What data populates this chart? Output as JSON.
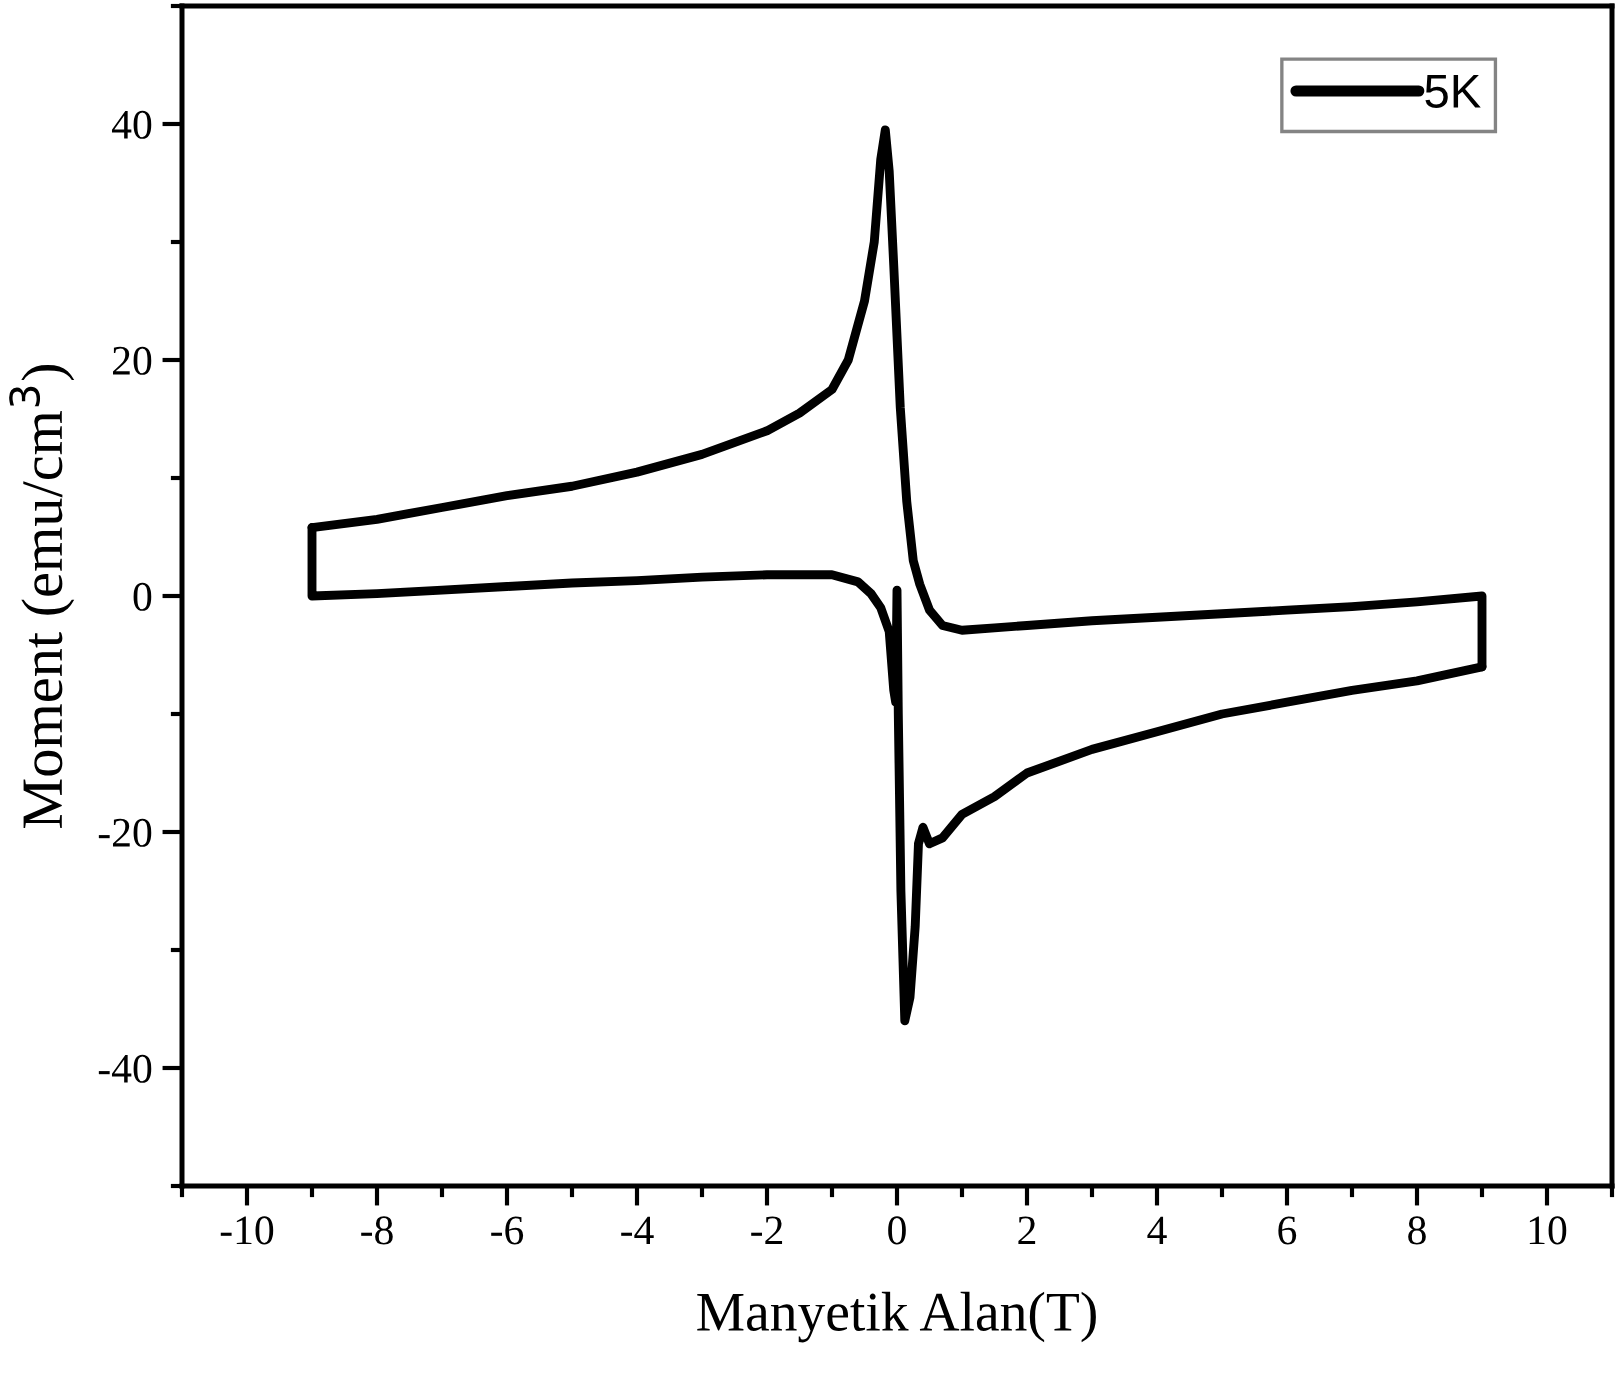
{
  "chart_data": {
    "type": "line",
    "xlabel": "Manyetik Alan(T)",
    "ylabel": "Moment (emu/cm$^{3}$)",
    "xlim": [
      -11,
      11
    ],
    "xticks": [
      -10,
      -8,
      -6,
      -4,
      -2,
      0,
      2,
      4,
      6,
      8,
      10
    ],
    "ylim": [
      -50,
      50
    ],
    "yticks": [
      -40,
      -20,
      0,
      20,
      40
    ],
    "grid": false,
    "legend": "top right",
    "marker": "none",
    "line_style": "solid",
    "series": [
      {
        "name": "5K",
        "color": "#000000",
        "x": [
          9,
          9,
          8,
          7,
          6,
          5,
          4,
          3,
          2,
          1.5,
          1,
          0.7,
          0.5,
          0.35,
          0.25,
          0.15,
          0.05,
          -0.05,
          -0.12,
          -0.18,
          -0.25,
          -0.35,
          -0.5,
          -0.75,
          -1,
          -1.5,
          -2,
          -3,
          -4,
          -5,
          -6,
          -7,
          -8,
          -9
        ],
        "values": [
          -6,
          0,
          -0.5,
          -0.9,
          -1.2,
          -1.5,
          -1.8,
          -2.1,
          -2.5,
          -2.7,
          -2.9,
          -2.5,
          -1.2,
          1,
          3,
          8,
          16,
          28,
          36,
          39.5,
          37,
          30,
          25,
          20,
          17.5,
          15.5,
          14,
          12,
          10.5,
          9.3,
          8.5,
          7.5,
          6.5,
          5.8
        ]
      },
      {
        "color": "#000000",
        "x": [
          -9,
          -9,
          -8,
          -7,
          -6,
          -5,
          -4,
          -3,
          -2,
          -1,
          -0.6,
          -0.4,
          -0.25,
          -0.12,
          -0.05,
          -0.02,
          0,
          0.02,
          0.06,
          0.12,
          0.2,
          0.28,
          0.33,
          0.4,
          0.5,
          0.7,
          1,
          1.5,
          2,
          3,
          4,
          5,
          6,
          7,
          8,
          9
        ],
        "values": [
          5.8,
          0,
          0.2,
          0.5,
          0.8,
          1.1,
          1.3,
          1.6,
          1.8,
          1.8,
          1.2,
          0.2,
          -1,
          -3,
          -8,
          -9,
          0.5,
          -10,
          -25,
          -36,
          -34,
          -28,
          -21,
          -19.6,
          -21,
          -20.5,
          -18.5,
          -17,
          -15,
          -13,
          -11.5,
          -10,
          -9,
          -8,
          -7.2,
          -6
        ]
      }
    ]
  }
}
